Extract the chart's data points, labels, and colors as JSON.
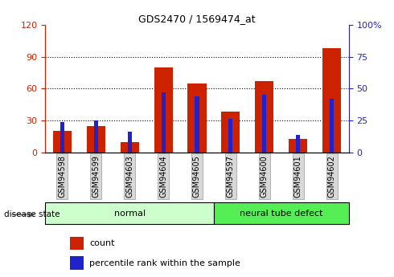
{
  "title": "GDS2470 / 1569474_at",
  "categories": [
    "GSM94598",
    "GSM94599",
    "GSM94603",
    "GSM94604",
    "GSM94605",
    "GSM94597",
    "GSM94600",
    "GSM94601",
    "GSM94602"
  ],
  "count_values": [
    20,
    25,
    10,
    80,
    65,
    38,
    67,
    13,
    98
  ],
  "percentile_values": [
    24,
    25,
    16,
    47,
    44,
    26,
    45,
    14,
    42
  ],
  "left_ylim": [
    0,
    120
  ],
  "right_ylim": [
    0,
    100
  ],
  "left_yticks": [
    0,
    30,
    60,
    90,
    120
  ],
  "right_yticks": [
    0,
    25,
    50,
    75,
    100
  ],
  "right_yticklabels": [
    "0",
    "25",
    "50",
    "75",
    "100%"
  ],
  "bar_color": "#cc2200",
  "percentile_color": "#2222cc",
  "group1_label": "normal",
  "group2_label": "neural tube defect",
  "group1_count": 5,
  "group2_count": 4,
  "group1_color": "#ccffcc",
  "group2_color": "#55ee55",
  "disease_state_label": "disease state",
  "legend_count": "count",
  "legend_percentile": "percentile rank within the sample",
  "tick_label_bg": "#d8d8d8",
  "bar_width": 0.55,
  "percentile_bar_width": 0.12,
  "grid_ticks": [
    30,
    60,
    90
  ]
}
